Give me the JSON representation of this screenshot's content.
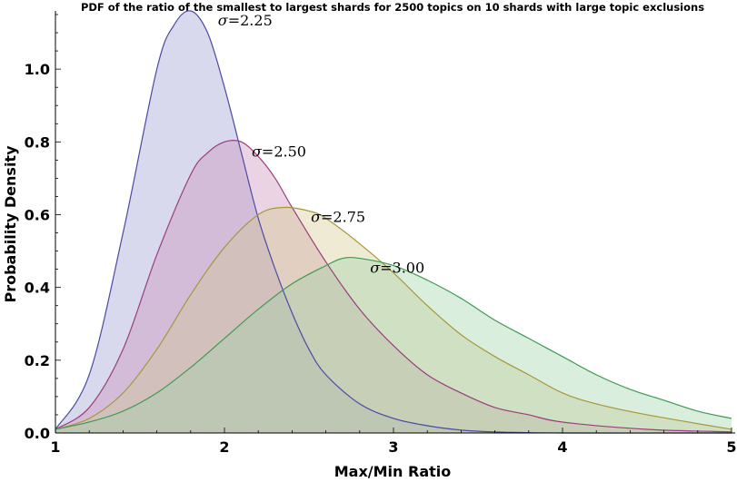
{
  "chart_data": {
    "type": "area",
    "title": "PDF of the ratio of the smallest to largest shards for 2500 topics on 10 shards with large topic exclusions",
    "xlabel": "Max/Min Ratio",
    "ylabel": "Probability Density",
    "xlim": [
      1,
      5
    ],
    "ylim": [
      0,
      1.16
    ],
    "xticks": [
      1,
      2,
      3,
      4,
      5
    ],
    "xtick_labels": [
      "1",
      "2",
      "3",
      "4",
      "5"
    ],
    "yticks": [
      0.0,
      0.2,
      0.4,
      0.6,
      0.8,
      1.0
    ],
    "ytick_labels": [
      "0.0",
      "0.2",
      "0.4",
      "0.6",
      "0.8",
      "1.0"
    ],
    "grid": false,
    "legend": "none",
    "series": [
      {
        "name": "σ=2.25",
        "sigma_label": "σ",
        "value_label": "=2.25",
        "color": "#4a4aa6",
        "fill": "#9b9bd0",
        "x": [
          1.0,
          1.2,
          1.4,
          1.6,
          1.7,
          1.8,
          1.9,
          2.0,
          2.1,
          2.2,
          2.3,
          2.4,
          2.5,
          2.6,
          2.8,
          3.0,
          3.2,
          3.4,
          3.6,
          4.0,
          5.0
        ],
        "values": [
          0.01,
          0.16,
          0.55,
          1.0,
          1.12,
          1.16,
          1.1,
          0.95,
          0.77,
          0.59,
          0.45,
          0.33,
          0.23,
          0.16,
          0.08,
          0.04,
          0.02,
          0.008,
          0.003,
          0.0,
          0.0
        ]
      },
      {
        "name": "σ=2.50",
        "sigma_label": "σ",
        "value_label": "=2.50",
        "color": "#9b3d7f",
        "fill": "#c98fb5",
        "x": [
          1.0,
          1.2,
          1.4,
          1.6,
          1.8,
          1.9,
          2.0,
          2.1,
          2.2,
          2.3,
          2.4,
          2.6,
          2.8,
          3.0,
          3.2,
          3.4,
          3.6,
          3.8,
          4.0,
          4.5,
          5.0
        ],
        "values": [
          0.01,
          0.07,
          0.23,
          0.49,
          0.71,
          0.77,
          0.8,
          0.8,
          0.76,
          0.7,
          0.62,
          0.47,
          0.34,
          0.24,
          0.16,
          0.11,
          0.07,
          0.05,
          0.03,
          0.01,
          0.003
        ]
      },
      {
        "name": "σ=2.75",
        "sigma_label": "σ",
        "value_label": "=2.75",
        "color": "#a8963a",
        "fill": "#d2c98f",
        "x": [
          1.0,
          1.2,
          1.4,
          1.6,
          1.8,
          2.0,
          2.2,
          2.35,
          2.5,
          2.6,
          2.8,
          3.0,
          3.2,
          3.4,
          3.6,
          3.8,
          4.0,
          4.2,
          4.5,
          5.0
        ],
        "values": [
          0.01,
          0.04,
          0.11,
          0.23,
          0.38,
          0.51,
          0.6,
          0.62,
          0.61,
          0.59,
          0.52,
          0.44,
          0.35,
          0.27,
          0.21,
          0.16,
          0.11,
          0.08,
          0.05,
          0.01
        ]
      },
      {
        "name": "σ=3.00",
        "sigma_label": "σ",
        "value_label": "=3.00",
        "color": "#3f9a52",
        "fill": "#9fd1a5",
        "x": [
          1.0,
          1.2,
          1.4,
          1.6,
          1.8,
          2.0,
          2.2,
          2.4,
          2.6,
          2.7,
          2.8,
          3.0,
          3.2,
          3.4,
          3.6,
          3.8,
          4.0,
          4.2,
          4.4,
          4.6,
          4.8,
          5.0
        ],
        "values": [
          0.01,
          0.03,
          0.06,
          0.11,
          0.18,
          0.26,
          0.34,
          0.41,
          0.46,
          0.48,
          0.48,
          0.46,
          0.42,
          0.37,
          0.31,
          0.26,
          0.21,
          0.16,
          0.12,
          0.09,
          0.06,
          0.04
        ]
      }
    ]
  }
}
